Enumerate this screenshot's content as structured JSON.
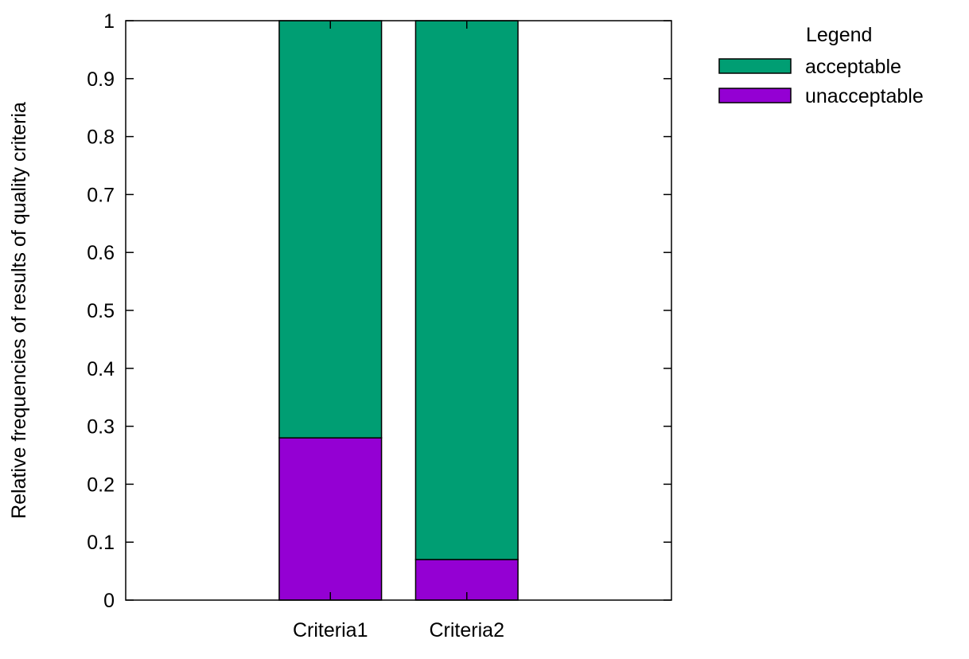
{
  "chart_data": {
    "type": "bar",
    "stacked": true,
    "categories": [
      "Criteria1",
      "Criteria2"
    ],
    "series": [
      {
        "name": "unacceptable",
        "values": [
          0.28,
          0.07
        ],
        "color": "#9400d3"
      },
      {
        "name": "acceptable",
        "values": [
          0.72,
          0.93
        ],
        "color": "#009e73"
      }
    ],
    "xlabel": "",
    "ylabel": "Relative frequencies of results of quality criteria",
    "ylim": [
      0,
      1
    ],
    "yticks": [
      0,
      0.1,
      0.2,
      0.3,
      0.4,
      0.5,
      0.6,
      0.7,
      0.8,
      0.9,
      1
    ],
    "ytick_labels": [
      "0",
      "0.1",
      "0.2",
      "0.3",
      "0.4",
      "0.5",
      "0.6",
      "0.7",
      "0.8",
      "0.9",
      "1"
    ],
    "grid": false,
    "legend": {
      "title": "Legend",
      "placement": "outside-top-right",
      "entries": [
        "acceptable",
        "unacceptable"
      ]
    }
  }
}
